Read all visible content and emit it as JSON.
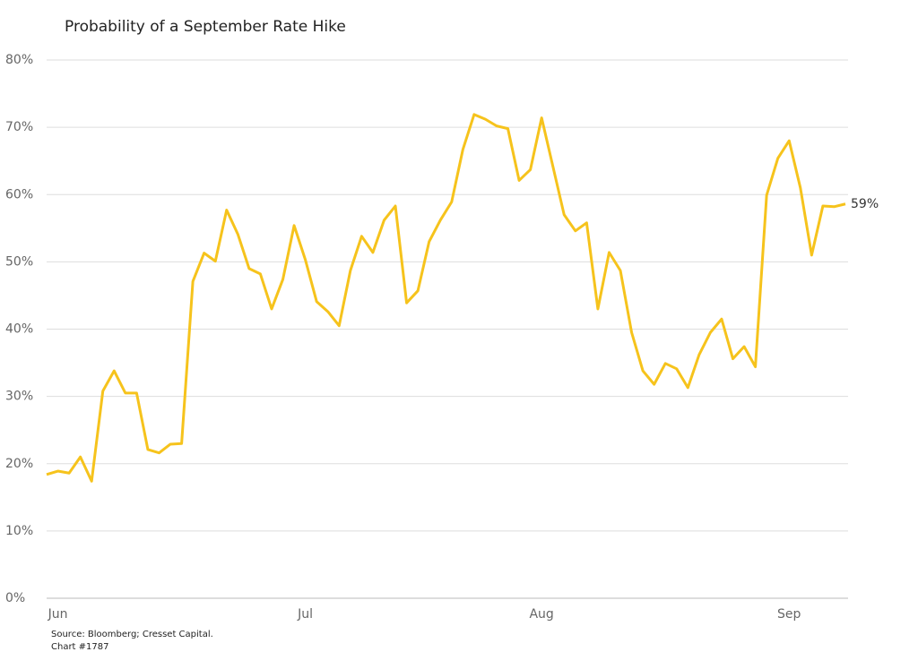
{
  "chart_data": {
    "type": "line",
    "title": "Probability of a September Rate Hike",
    "source": "Source: Bloomberg; Cresset Capital.",
    "chart_number": "Chart #1787",
    "categories": [
      null,
      "Jun",
      null,
      null,
      null,
      null,
      null,
      null,
      null,
      null,
      null,
      null,
      null,
      null,
      null,
      null,
      null,
      null,
      null,
      null,
      null,
      null,
      null,
      "Jul",
      null,
      null,
      null,
      null,
      null,
      null,
      null,
      null,
      null,
      null,
      null,
      null,
      null,
      null,
      null,
      null,
      null,
      null,
      null,
      null,
      "Aug",
      null,
      null,
      null,
      null,
      null,
      null,
      null,
      null,
      null,
      null,
      null,
      null,
      null,
      null,
      null,
      null,
      null,
      null,
      null,
      null,
      null,
      "Sep",
      null,
      null,
      null,
      null,
      null
    ],
    "series": [
      {
        "color": "#f6c31c",
        "values": [
          18.4,
          18.9,
          18.6,
          21.0,
          17.4,
          30.8,
          33.8,
          30.5,
          30.5,
          22.1,
          21.6,
          22.9,
          23.0,
          47.1,
          51.3,
          50.1,
          57.7,
          54.1,
          49.0,
          48.2,
          43.0,
          47.4,
          55.4,
          50.3,
          44.1,
          42.6,
          40.5,
          48.7,
          53.8,
          51.4,
          56.2,
          58.3,
          43.9,
          45.7,
          53.0,
          56.2,
          58.9,
          66.7,
          71.9,
          71.2,
          70.2,
          69.8,
          62.1,
          63.7,
          71.4,
          64.2,
          57.0,
          54.6,
          55.8,
          43.0,
          51.4,
          48.7,
          39.5,
          33.8,
          31.8,
          34.9,
          34.1,
          31.3,
          36.2,
          39.5,
          41.5,
          35.6,
          37.4,
          34.4,
          59.9,
          65.4,
          68.0,
          61.0,
          51.0,
          58.3,
          58.2,
          58.6
        ],
        "value_labels": [
          null,
          null,
          null,
          null,
          null,
          null,
          null,
          null,
          null,
          null,
          null,
          null,
          null,
          null,
          null,
          null,
          null,
          null,
          null,
          null,
          null,
          null,
          null,
          null,
          null,
          null,
          null,
          null,
          null,
          null,
          null,
          null,
          null,
          null,
          null,
          null,
          null,
          null,
          null,
          null,
          null,
          null,
          null,
          null,
          null,
          null,
          null,
          null,
          null,
          null,
          null,
          null,
          null,
          null,
          null,
          null,
          null,
          null,
          null,
          null,
          null,
          null,
          null,
          null,
          null,
          null,
          null,
          null,
          null,
          null,
          null,
          "59%"
        ]
      }
    ],
    "ylim": [
      0,
      80
    ],
    "yticks": [
      {
        "value": 0,
        "label": "0%"
      },
      {
        "value": 10,
        "label": "10%"
      },
      {
        "value": 20,
        "label": "20%"
      },
      {
        "value": 30,
        "label": "30%"
      },
      {
        "value": 40,
        "label": "40%"
      },
      {
        "value": 50,
        "label": "50%"
      },
      {
        "value": 60,
        "label": "60%"
      },
      {
        "value": 70,
        "label": "70%"
      },
      {
        "value": 80,
        "label": "80%"
      }
    ],
    "grid": true
  }
}
